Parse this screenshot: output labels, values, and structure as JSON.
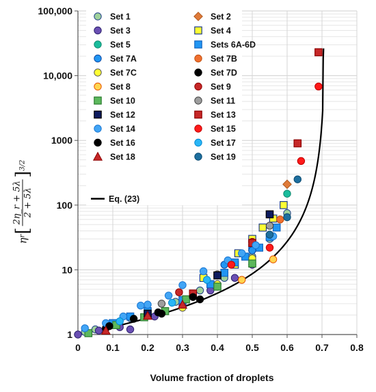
{
  "chart_data": {
    "type": "scatter",
    "title": "",
    "xlabel": "Volume fraction of droplets",
    "ylabel": {
      "symbol": "η",
      "subscript": "r",
      "numerator": "2η_r + 5λ",
      "denominator": "2 + 5λ",
      "exponent": "3/2"
    },
    "xlim": [
      0,
      0.8
    ],
    "ylim": [
      1,
      100000
    ],
    "y_scale": "log",
    "grid": true,
    "legend_placement": "top-left",
    "x_ticks": [
      "0",
      "0.1",
      "0.2",
      "0.3",
      "0.4",
      "0.5",
      "0.6",
      "0.7",
      "0.8"
    ],
    "y_ticks": [
      "1",
      "10",
      "100",
      "1000",
      "10,000",
      "100,000"
    ],
    "series": [
      {
        "name": "Set 1",
        "marker": "circle",
        "color": "#9fd19b",
        "stroke": "#1f3d8a",
        "points": [
          [
            0.02,
            1.1
          ],
          [
            0.05,
            1.2
          ],
          [
            0.1,
            1.4
          ],
          [
            0.15,
            1.8
          ],
          [
            0.2,
            2.3
          ],
          [
            0.28,
            3.2
          ],
          [
            0.35,
            4.8
          ],
          [
            0.42,
            7.5
          ],
          [
            0.5,
            16
          ],
          [
            0.55,
            30
          ],
          [
            0.6,
            75
          ]
        ]
      },
      {
        "name": "Set 2",
        "marker": "diamond",
        "color": "#e07b39",
        "stroke": "#b05a20",
        "points": [
          [
            0.6,
            210
          ]
        ]
      },
      {
        "name": "Set 3",
        "marker": "circle",
        "color": "#6a4fb3",
        "stroke": "#2a1f6a",
        "points": [
          [
            0.0,
            1.0
          ],
          [
            0.06,
            1.15
          ],
          [
            0.12,
            1.3
          ],
          [
            0.15,
            1.2
          ],
          [
            0.22,
            1.9
          ],
          [
            0.3,
            2.8
          ],
          [
            0.38,
            4.8
          ],
          [
            0.45,
            7.5
          ],
          [
            0.5,
            12
          ]
        ]
      },
      {
        "name": "Set 4",
        "marker": "square",
        "color": "#ffff33",
        "stroke": "#1f3d8a",
        "points": [
          [
            0.36,
            7.5
          ],
          [
            0.45,
            12
          ],
          [
            0.46,
            18
          ],
          [
            0.5,
            30
          ],
          [
            0.53,
            45
          ],
          [
            0.56,
            62
          ],
          [
            0.59,
            100
          ]
        ]
      },
      {
        "name": "Set 5",
        "marker": "circle",
        "color": "#1abc9c",
        "stroke": "#128a70",
        "points": [
          [
            0.6,
            150
          ]
        ]
      },
      {
        "name": "Sets 6A-6D",
        "marker": "square",
        "color": "#2196f3",
        "stroke": "#1565c0",
        "points": [
          [
            0.1,
            1.5
          ],
          [
            0.15,
            1.9
          ],
          [
            0.2,
            2.3
          ],
          [
            0.3,
            3.4
          ],
          [
            0.38,
            6
          ],
          [
            0.42,
            9
          ],
          [
            0.45,
            13
          ],
          [
            0.48,
            16
          ],
          [
            0.5,
            22
          ],
          [
            0.52,
            22
          ],
          [
            0.55,
            32
          ],
          [
            0.57,
            45
          ]
        ]
      },
      {
        "name": "Set 7A",
        "marker": "circle",
        "color": "#2196f3",
        "stroke": "#0d47a1",
        "points": [
          [
            0.42,
            12
          ],
          [
            0.5,
            20
          ]
        ]
      },
      {
        "name": "Set 7B",
        "marker": "circle",
        "color": "#f07030",
        "stroke": "#c05010",
        "points": [
          [
            0.58,
            60
          ]
        ]
      },
      {
        "name": "Set 7C",
        "marker": "circle",
        "color": "#ffff33",
        "stroke": "#555555",
        "points": [
          [
            0.3,
            2.6
          ],
          [
            0.4,
            6
          ],
          [
            0.5,
            15
          ]
        ]
      },
      {
        "name": "Set 7D",
        "marker": "circle",
        "color": "#000000",
        "stroke": "#000000",
        "points": [
          [
            0.08,
            1.25
          ],
          [
            0.16,
            1.75
          ],
          [
            0.23,
            2.2
          ],
          [
            0.35,
            3.5
          ]
        ]
      },
      {
        "name": "Set 8",
        "marker": "circle",
        "color": "#ffd54f",
        "stroke": "#e65100",
        "points": [
          [
            0.47,
            7
          ],
          [
            0.56,
            14.5
          ]
        ]
      },
      {
        "name": "Set 9",
        "marker": "circle",
        "color": "#c62828",
        "stroke": "#8e0000",
        "points": [
          [
            0.29,
            4.5
          ],
          [
            0.5,
            27
          ]
        ]
      },
      {
        "name": "Set 10",
        "marker": "square",
        "color": "#5cb85c",
        "stroke": "#2e7d32",
        "points": [
          [
            0.03,
            1.05
          ],
          [
            0.11,
            1.4
          ],
          [
            0.19,
            1.85
          ],
          [
            0.25,
            2.3
          ],
          [
            0.31,
            3.5
          ],
          [
            0.4,
            5.5
          ],
          [
            0.5,
            12.5
          ]
        ]
      },
      {
        "name": "Set 11",
        "marker": "circle",
        "color": "#9e9e9e",
        "stroke": "#424242",
        "points": [
          [
            0.24,
            3
          ],
          [
            0.4,
            8.5
          ],
          [
            0.55,
            48
          ]
        ]
      },
      {
        "name": "Set 12",
        "marker": "square",
        "color": "#0d1b5e",
        "stroke": "#000000",
        "points": [
          [
            0.2,
            2.1
          ],
          [
            0.4,
            8.2
          ],
          [
            0.55,
            72
          ]
        ]
      },
      {
        "name": "Set 13",
        "marker": "square",
        "color": "#c62828",
        "stroke": "#8e0000",
        "points": [
          [
            0.33,
            4.3
          ],
          [
            0.5,
            26
          ],
          [
            0.63,
            900
          ],
          [
            0.69,
            23000
          ]
        ]
      },
      {
        "name": "Set 14",
        "marker": "circle",
        "color": "#42a5f5",
        "stroke": "#1976d2",
        "points": [
          [
            0.02,
            1.25
          ],
          [
            0.08,
            1.5
          ],
          [
            0.13,
            1.9
          ],
          [
            0.18,
            2.8
          ],
          [
            0.2,
            2.9
          ],
          [
            0.26,
            4.0
          ],
          [
            0.3,
            5.8
          ],
          [
            0.36,
            9.5
          ],
          [
            0.43,
            14
          ],
          [
            0.47,
            18
          ],
          [
            0.51,
            24
          ],
          [
            0.56,
            33
          ]
        ]
      },
      {
        "name": "Set 15",
        "marker": "circle",
        "color": "#ff1a1a",
        "stroke": "#c00000",
        "points": [
          [
            0.44,
            12
          ],
          [
            0.55,
            22
          ],
          [
            0.64,
            480
          ],
          [
            0.69,
            6800
          ]
        ]
      },
      {
        "name": "Set 16",
        "marker": "circle",
        "color": "#000000",
        "stroke": "#000000",
        "points": [
          [
            0.09,
            1.35
          ],
          [
            0.24,
            2.1
          ],
          [
            0.33,
            3.8
          ]
        ]
      },
      {
        "name": "Set 17",
        "marker": "circle",
        "color": "#29b6f6",
        "stroke": "#0288d1",
        "points": [
          [
            0.12,
            1.6
          ],
          [
            0.27,
            3.1
          ],
          [
            0.37,
            7
          ]
        ]
      },
      {
        "name": "Set 18",
        "marker": "triangle",
        "color": "#c62828",
        "stroke": "#8e0000",
        "points": [
          [
            0.08,
            1.15
          ],
          [
            0.2,
            1.95
          ],
          [
            0.3,
            2.9
          ]
        ]
      },
      {
        "name": "Set 19",
        "marker": "circle",
        "color": "#1e6f9f",
        "stroke": "#0b4a70",
        "points": [
          [
            0.55,
            35
          ],
          [
            0.6,
            65
          ],
          [
            0.63,
            250
          ]
        ]
      },
      {
        "name": "Eq. (23)",
        "marker": "line",
        "color": "#000000",
        "curve": {
          "phi_max": 0.71,
          "exponent": 2.5
        }
      }
    ]
  }
}
